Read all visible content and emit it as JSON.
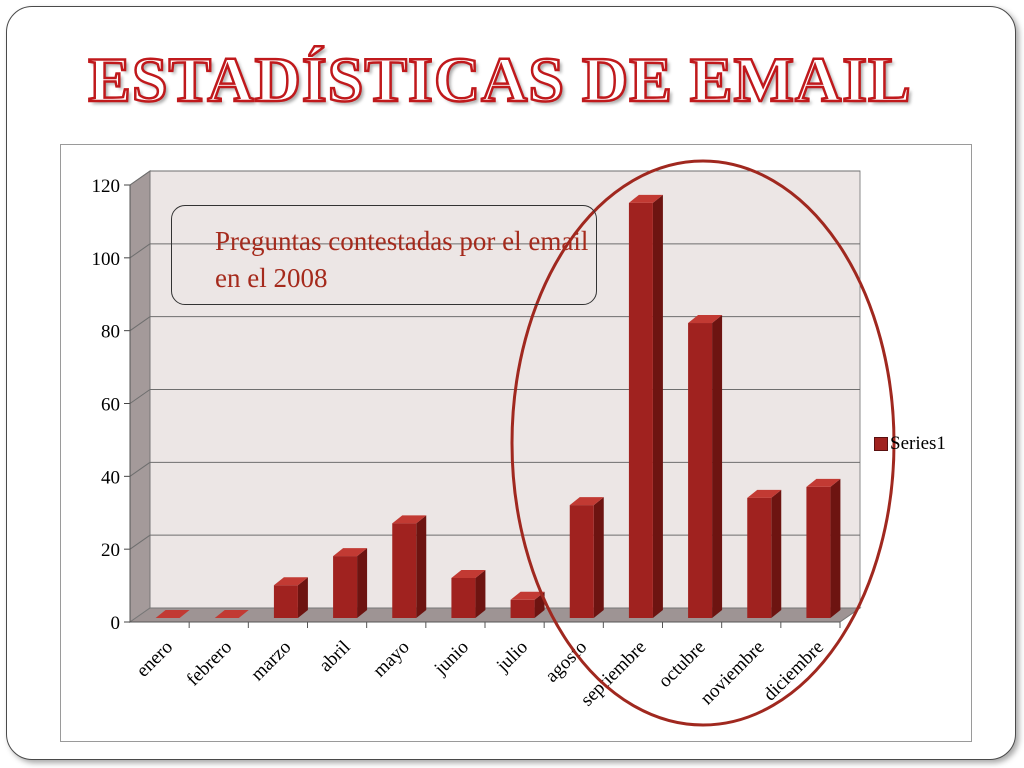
{
  "slide": {
    "title": "ESTADÍSTICAS DE EMAIL",
    "callout_text": "Preguntas contestadas por el email en el 2008"
  },
  "colors": {
    "title_stroke": "#c0191c",
    "bar_front": "#a0221f",
    "bar_side": "#6d1411",
    "bar_top": "#c23a33",
    "ellipse": "#a0281f",
    "wall": "#ece6e5"
  },
  "chart_data": {
    "type": "bar",
    "three_d": true,
    "categories": [
      "enero",
      "febrero",
      "marzo",
      "abril",
      "mayo",
      "junio",
      "julio",
      "agosto",
      "septiembre",
      "octubre",
      "noviembre",
      "diciembre"
    ],
    "series": [
      {
        "name": "Series1",
        "values": [
          0,
          0,
          9,
          17,
          26,
          11,
          5,
          31,
          114,
          81,
          33,
          36
        ]
      }
    ],
    "ylim": [
      0,
      120
    ],
    "yticks": [
      0,
      20,
      40,
      60,
      80,
      100,
      120
    ],
    "grid": true,
    "legend": "right",
    "highlight": "ellipse around agosto–diciembre"
  }
}
